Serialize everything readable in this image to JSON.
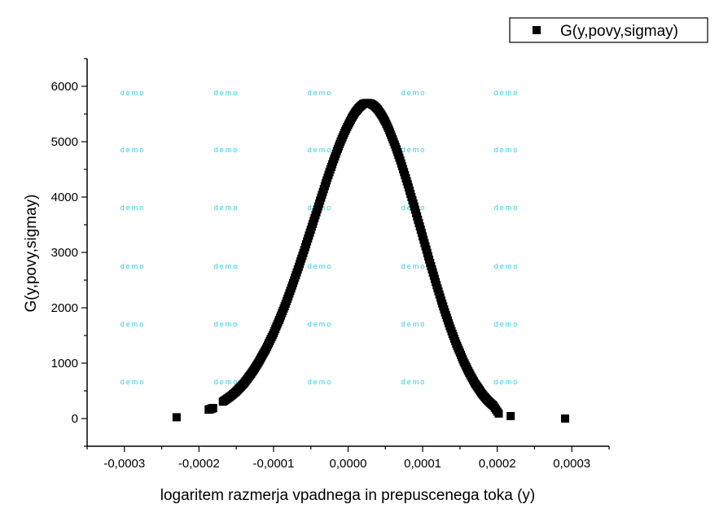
{
  "chart_data": {
    "type": "scatter",
    "title": "",
    "xlabel": "logaritem razmerja vpadnega in prepuscenega toka (y)",
    "ylabel": "G(y,povy,sigmay)",
    "xlim": [
      -0.00035,
      0.00035
    ],
    "ylim": [
      -500,
      6500
    ],
    "x_ticks": [
      -0.0003,
      -0.0002,
      -0.0001,
      0.0,
      0.0001,
      0.0002,
      0.0003
    ],
    "x_tick_labels": [
      "-0,0003",
      "-0,0002",
      "-0,0001",
      "0,0000",
      "0,0001",
      "0,0002",
      "0,0003"
    ],
    "y_ticks": [
      0,
      1000,
      2000,
      3000,
      4000,
      5000,
      6000
    ],
    "y_tick_labels": [
      "0",
      "1000",
      "2000",
      "3000",
      "4000",
      "5000",
      "6000"
    ],
    "legend": {
      "position": "top-right",
      "entries": [
        "G(y,povy,sigmay)"
      ]
    },
    "grid": false,
    "watermark": "demo",
    "series": [
      {
        "name": "G(y,povy,sigmay)",
        "marker": "square",
        "color": "#000000",
        "points": [
          [
            -0.00023,
            23
          ],
          [
            -0.000187,
            160
          ],
          [
            -0.000184,
            175
          ],
          [
            -0.000181,
            190
          ],
          [
            -0.000168,
            305
          ],
          [
            -0.000162,
            360
          ],
          [
            -0.000156,
            420
          ],
          [
            -0.00015,
            490
          ],
          [
            -0.000145,
            560
          ],
          [
            -0.00014,
            630
          ],
          [
            -0.000135,
            720
          ],
          [
            -0.00013,
            810
          ],
          [
            -0.000125,
            910
          ],
          [
            -0.00012,
            1020
          ],
          [
            -0.000115,
            1140
          ],
          [
            -0.00011,
            1260
          ],
          [
            -0.000105,
            1400
          ],
          [
            -0.0001,
            1540
          ],
          [
            -9.5e-05,
            1700
          ],
          [
            -9e-05,
            1860
          ],
          [
            -8.5e-05,
            2030
          ],
          [
            -8e-05,
            2210
          ],
          [
            -7.5e-05,
            2400
          ],
          [
            -7e-05,
            2590
          ],
          [
            -6.5e-05,
            2790
          ],
          [
            -6e-05,
            2990
          ],
          [
            -5.5e-05,
            3200
          ],
          [
            -5e-05,
            3410
          ],
          [
            -4.5e-05,
            3620
          ],
          [
            -4e-05,
            3830
          ],
          [
            -3.5e-05,
            4040
          ],
          [
            -3e-05,
            4250
          ],
          [
            -2.5e-05,
            4450
          ],
          [
            -2e-05,
            4640
          ],
          [
            -1.5e-05,
            4830
          ],
          [
            -1e-05,
            5000
          ],
          [
            -5e-06,
            5160
          ],
          [
            0.0,
            5300
          ],
          [
            5e-06,
            5430
          ],
          [
            1e-05,
            5540
          ],
          [
            1.5e-05,
            5620
          ],
          [
            2e-05,
            5680
          ],
          [
            2.5e-05,
            5700
          ],
          [
            3e-05,
            5690
          ],
          [
            3.5e-05,
            5650
          ],
          [
            4e-05,
            5580
          ],
          [
            4.5e-05,
            5480
          ],
          [
            5e-05,
            5360
          ],
          [
            5.5e-05,
            5210
          ],
          [
            6e-05,
            5040
          ],
          [
            6.5e-05,
            4860
          ],
          [
            7e-05,
            4660
          ],
          [
            7.5e-05,
            4450
          ],
          [
            8e-05,
            4230
          ],
          [
            8.5e-05,
            4000
          ],
          [
            9e-05,
            3770
          ],
          [
            9.5e-05,
            3530
          ],
          [
            0.0001,
            3290
          ],
          [
            0.000105,
            3050
          ],
          [
            0.00011,
            2810
          ],
          [
            0.000115,
            2580
          ],
          [
            0.00012,
            2350
          ],
          [
            0.000125,
            2130
          ],
          [
            0.00013,
            1920
          ],
          [
            0.000135,
            1720
          ],
          [
            0.00014,
            1530
          ],
          [
            0.000145,
            1350
          ],
          [
            0.00015,
            1190
          ],
          [
            0.000155,
            1030
          ],
          [
            0.00016,
            890
          ],
          [
            0.000165,
            760
          ],
          [
            0.00017,
            640
          ],
          [
            0.000175,
            540
          ],
          [
            0.00018,
            440
          ],
          [
            0.000185,
            360
          ],
          [
            0.00019,
            290
          ],
          [
            0.000195,
            230
          ],
          [
            0.000202,
            90
          ],
          [
            0.000218,
            45
          ],
          [
            0.000291,
            0
          ]
        ]
      }
    ]
  }
}
